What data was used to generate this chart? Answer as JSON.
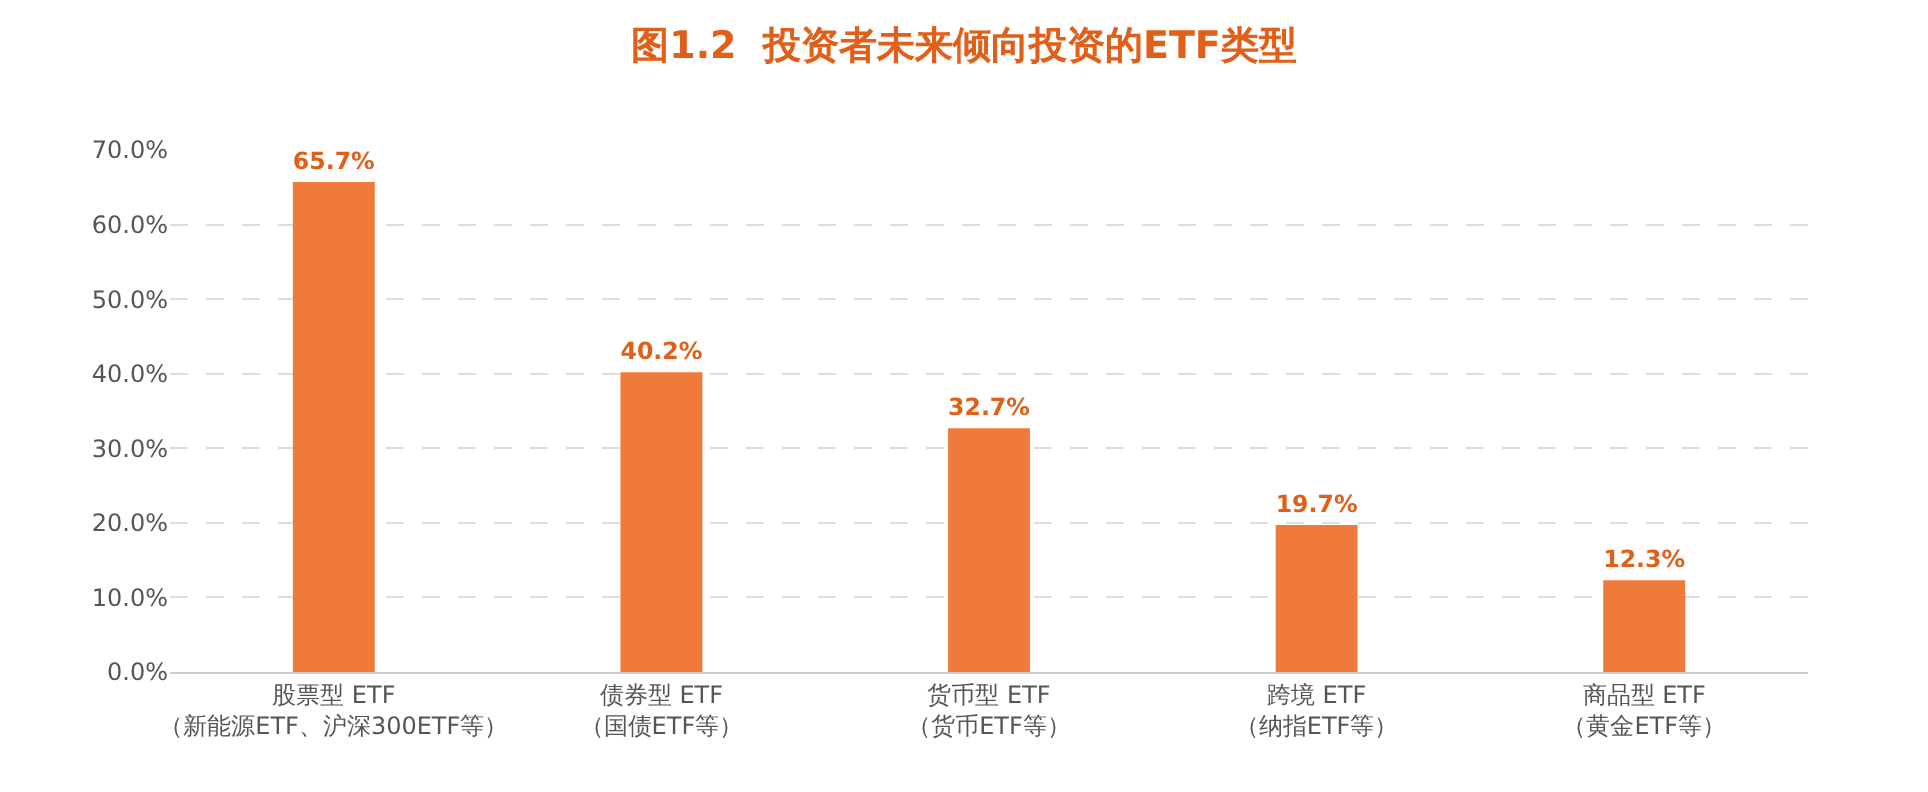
{
  "chart_data": {
    "type": "bar",
    "title": "图1.2  投资者未来倾向投资的ETF类型",
    "categories": [
      "股票型 ETF\n（新能源ETF、沪深300ETF等）",
      "债券型 ETF\n（国债ETF等）",
      "货币型 ETF\n（货币ETF等）",
      "跨境 ETF\n（纳指ETF等）",
      "商品型 ETF\n（黄金ETF等）"
    ],
    "values": [
      65.7,
      40.2,
      32.7,
      19.7,
      12.3
    ],
    "value_labels": [
      "65.7%",
      "40.2%",
      "32.7%",
      "19.7%",
      "12.3%"
    ],
    "color": "#f07a3a",
    "ylim": [
      0,
      70
    ],
    "yticks": [
      {
        "value": 0,
        "label": "0.0%"
      },
      {
        "value": 10,
        "label": "10.0%"
      },
      {
        "value": 20,
        "label": "20.0%"
      },
      {
        "value": 30,
        "label": "30.0%"
      },
      {
        "value": 40,
        "label": "40.0%"
      },
      {
        "value": 50,
        "label": "50.0%"
      },
      {
        "value": 60,
        "label": "60.0%"
      },
      {
        "value": 70,
        "label": "70.0%"
      }
    ],
    "grid": "y"
  }
}
